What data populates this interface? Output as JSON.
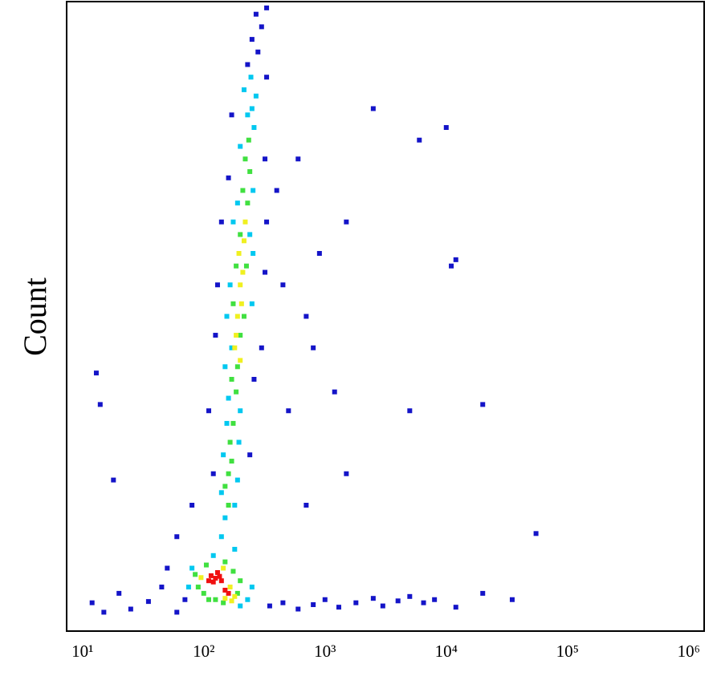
{
  "chart_data": {
    "type": "scatter",
    "y_label": "Count",
    "xscale": "log",
    "grid": false,
    "xlim": [
      7.4,
      1340000
    ],
    "ylim": [
      0,
      100
    ],
    "xticks": [
      {
        "value": 10,
        "label": "10¹"
      },
      {
        "value": 100,
        "label": "10²"
      },
      {
        "value": 1000,
        "label": "10³"
      },
      {
        "value": 10000,
        "label": "10⁴"
      },
      {
        "value": 100000,
        "label": "10⁵"
      },
      {
        "value": 1000000,
        "label": "10⁶"
      }
    ],
    "series": [
      {
        "color": "#1414c8",
        "x": [
          350,
          450,
          600,
          800,
          1000,
          1300,
          1800,
          2500,
          3000,
          4000,
          5000,
          6500,
          8000,
          12000,
          20000,
          35000,
          55000,
          12,
          15,
          20,
          25,
          35,
          45,
          60,
          70,
          50,
          60,
          80,
          120,
          240,
          110,
          260,
          125,
          300,
          130,
          320,
          140,
          330,
          160,
          320,
          170,
          330,
          230,
          280,
          300,
          270,
          330,
          250,
          500,
          700,
          900,
          1200,
          1500,
          2500,
          6000,
          10000,
          11000,
          12000,
          5000,
          20000,
          700,
          1500,
          13,
          14,
          18,
          400,
          600,
          450,
          800
        ],
        "values": [
          4,
          4.5,
          3.5,
          4.2,
          5,
          3.8,
          4.5,
          5.2,
          4,
          4.8,
          5.5,
          4.5,
          5,
          3.8,
          6,
          5,
          15.5,
          4.5,
          3,
          6,
          3.5,
          4.7,
          7,
          3,
          5,
          10,
          15,
          20,
          25,
          28,
          35,
          40,
          47,
          45,
          55,
          57,
          65,
          65,
          72,
          75,
          82,
          88,
          90,
          92,
          96,
          98,
          99,
          94,
          35,
          50,
          60,
          38,
          65,
          83,
          78,
          80,
          58,
          59,
          35,
          36,
          20,
          25,
          41,
          36,
          24,
          70,
          75,
          55,
          45
        ]
      },
      {
        "color": "#00c8f0",
        "x": [
          75,
          80,
          200,
          230,
          250,
          120,
          180,
          140,
          150,
          180,
          140,
          190,
          145,
          195,
          155,
          200,
          160,
          170,
          150,
          165,
          155,
          250,
          255,
          240,
          175,
          190,
          255,
          200,
          260,
          250,
          230,
          270,
          215,
          245
        ],
        "values": [
          7,
          10,
          4,
          5,
          7,
          12,
          13,
          15,
          18,
          20,
          22,
          24,
          28,
          30,
          33,
          35,
          37,
          45,
          42,
          55,
          50,
          52,
          60,
          63,
          65,
          68,
          70,
          77,
          80,
          83,
          82,
          85,
          86,
          88
        ]
      },
      {
        "color": "#40e040",
        "x": [
          85,
          90,
          100,
          110,
          125,
          145,
          190,
          200,
          175,
          150,
          105,
          160,
          170,
          150,
          165,
          175,
          185,
          170,
          190,
          200,
          175,
          215,
          225,
          185,
          230,
          210,
          240,
          220,
          200,
          235,
          160
        ],
        "values": [
          9,
          7,
          6,
          5,
          5,
          4.5,
          6,
          8,
          9.5,
          11,
          10.5,
          25,
          27,
          23,
          30,
          33,
          38,
          40,
          42,
          47,
          52,
          50,
          58,
          58,
          68,
          70,
          73,
          75,
          63,
          78,
          20
        ]
      },
      {
        "color": "#f0f020",
        "x": [
          170,
          180,
          150,
          165,
          95,
          145,
          200,
          210,
          190,
          185,
          205,
          195,
          215,
          180,
          220,
          200
        ],
        "values": [
          4.8,
          5.5,
          5.2,
          7,
          8.5,
          10,
          55,
          57,
          50,
          47,
          52,
          60,
          62,
          45,
          65,
          43
        ]
      },
      {
        "color": "#f01010",
        "x": [
          115,
          125,
          135,
          120,
          130,
          110,
          140,
          150,
          160
        ],
        "values": [
          8.8,
          8.4,
          8.7,
          7.8,
          9.3,
          8.0,
          8.0,
          6.5,
          6.0
        ]
      }
    ]
  }
}
